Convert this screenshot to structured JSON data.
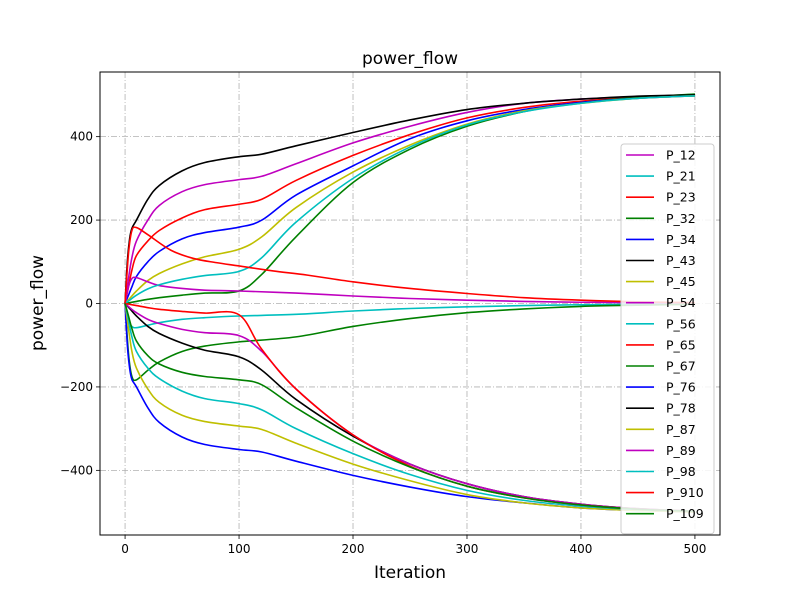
{
  "chart_data": {
    "type": "line",
    "title": "power_flow",
    "xlabel": "Iteration",
    "ylabel": "power_flow",
    "xlim": [
      -22,
      522
    ],
    "ylim": [
      -555,
      555
    ],
    "xticks": [
      0,
      100,
      200,
      300,
      400,
      500
    ],
    "yticks": [
      -400,
      -200,
      0,
      200,
      400
    ],
    "grid": true,
    "grid_style": "dashdot",
    "legend_position": "right",
    "series": [
      {
        "name": "P_12",
        "color": "#bf00bf",
        "x": [
          0,
          3,
          6,
          10,
          20,
          30,
          50,
          70,
          100,
          120,
          150,
          200,
          250,
          300,
          350,
          400,
          450,
          500
        ],
        "y": [
          0,
          60,
          110,
          150,
          200,
          235,
          268,
          285,
          297,
          305,
          335,
          385,
          425,
          458,
          480,
          490,
          496,
          500
        ]
      },
      {
        "name": "P_21",
        "color": "#00bfbf",
        "x": [
          0,
          3,
          6,
          10,
          20,
          30,
          50,
          70,
          100,
          150,
          200,
          250,
          300,
          350,
          400,
          450,
          500
        ],
        "y": [
          0,
          -40,
          -55,
          -58,
          -52,
          -46,
          -38,
          -34,
          -30,
          -26,
          -18,
          -12,
          -8,
          -5,
          -3,
          -2,
          -1
        ]
      },
      {
        "name": "P_23",
        "color": "#ff0000",
        "x": [
          0,
          3,
          6,
          10,
          20,
          30,
          50,
          70,
          100,
          120,
          150,
          200,
          250,
          300,
          350,
          400,
          450,
          500
        ],
        "y": [
          0,
          40,
          80,
          115,
          150,
          175,
          205,
          225,
          238,
          250,
          295,
          355,
          405,
          445,
          470,
          485,
          494,
          498
        ]
      },
      {
        "name": "P_32",
        "color": "#008000",
        "x": [
          0,
          10,
          20,
          30,
          50,
          70,
          100,
          120,
          150,
          200,
          250,
          300,
          350,
          400,
          450,
          500
        ],
        "y": [
          0,
          5,
          10,
          14,
          20,
          25,
          30,
          70,
          160,
          290,
          370,
          425,
          460,
          482,
          494,
          502
        ]
      },
      {
        "name": "P_34",
        "color": "#0000ff",
        "x": [
          0,
          3,
          6,
          10,
          20,
          30,
          50,
          70,
          100,
          120,
          150,
          200,
          250,
          300,
          350,
          400,
          450,
          500
        ],
        "y": [
          0,
          20,
          40,
          65,
          100,
          125,
          155,
          170,
          183,
          200,
          260,
          330,
          395,
          438,
          465,
          482,
          492,
          498
        ]
      },
      {
        "name": "P_43",
        "color": "#000000",
        "x": [
          0,
          2,
          4,
          6,
          10,
          20,
          30,
          50,
          70,
          100,
          120,
          150,
          200,
          250,
          300,
          350,
          400,
          450,
          500
        ],
        "y": [
          0,
          100,
          155,
          180,
          200,
          250,
          283,
          318,
          338,
          352,
          358,
          378,
          410,
          440,
          465,
          480,
          490,
          497,
          500
        ]
      },
      {
        "name": "P_45",
        "color": "#bfbf00",
        "x": [
          0,
          5,
          10,
          20,
          30,
          50,
          70,
          100,
          120,
          150,
          200,
          250,
          300,
          350,
          400,
          450,
          500
        ],
        "y": [
          0,
          15,
          30,
          55,
          72,
          95,
          112,
          130,
          160,
          230,
          315,
          380,
          430,
          462,
          480,
          492,
          498
        ]
      },
      {
        "name": "P_54",
        "color": "#bf00bf",
        "x": [
          0,
          3,
          6,
          10,
          20,
          30,
          50,
          70,
          100,
          150,
          200,
          250,
          300,
          350,
          400,
          450,
          500
        ],
        "y": [
          0,
          40,
          60,
          62,
          52,
          43,
          36,
          32,
          30,
          25,
          18,
          12,
          8,
          5,
          3,
          2,
          1
        ]
      },
      {
        "name": "P_56",
        "color": "#00bfbf",
        "x": [
          0,
          5,
          10,
          20,
          30,
          50,
          70,
          100,
          120,
          150,
          200,
          250,
          300,
          350,
          400,
          450,
          500
        ],
        "y": [
          0,
          10,
          20,
          35,
          45,
          58,
          67,
          77,
          110,
          195,
          300,
          375,
          428,
          460,
          480,
          492,
          498
        ]
      },
      {
        "name": "P_65",
        "color": "#ff0000",
        "x": [
          0,
          3,
          6,
          10,
          20,
          40,
          60,
          80,
          100,
          130,
          160,
          200,
          250,
          300,
          350,
          400,
          450,
          500
        ],
        "y": [
          0,
          120,
          175,
          182,
          165,
          128,
          108,
          98,
          90,
          78,
          68,
          52,
          36,
          24,
          14,
          8,
          4,
          2
        ]
      },
      {
        "name": "P_67",
        "color": "#008000",
        "x": [
          0,
          3,
          6,
          10,
          20,
          30,
          50,
          70,
          100,
          150,
          200,
          250,
          300,
          350,
          400,
          450,
          500
        ],
        "y": [
          0,
          -120,
          -175,
          -183,
          -160,
          -140,
          -115,
          -102,
          -92,
          -80,
          -55,
          -36,
          -22,
          -13,
          -7,
          -4,
          -2
        ]
      },
      {
        "name": "P_76",
        "color": "#0000ff",
        "x": [
          0,
          2,
          4,
          6,
          10,
          20,
          30,
          50,
          70,
          100,
          120,
          150,
          200,
          250,
          300,
          350,
          400,
          450,
          500
        ],
        "y": [
          0,
          -100,
          -155,
          -182,
          -200,
          -250,
          -285,
          -320,
          -338,
          -350,
          -356,
          -378,
          -412,
          -440,
          -463,
          -478,
          -490,
          -496,
          -500
        ]
      },
      {
        "name": "P_78",
        "color": "#000000",
        "x": [
          0,
          5,
          10,
          20,
          30,
          50,
          70,
          100,
          120,
          150,
          200,
          250,
          300,
          350,
          400,
          450,
          500
        ],
        "y": [
          0,
          -15,
          -30,
          -55,
          -72,
          -95,
          -112,
          -128,
          -160,
          -230,
          -318,
          -385,
          -432,
          -463,
          -481,
          -492,
          -498
        ]
      },
      {
        "name": "P_87",
        "color": "#bfbf00",
        "x": [
          0,
          3,
          6,
          10,
          20,
          30,
          50,
          70,
          100,
          120,
          150,
          200,
          250,
          300,
          350,
          400,
          450,
          500
        ],
        "y": [
          0,
          -60,
          -115,
          -155,
          -205,
          -237,
          -268,
          -283,
          -294,
          -302,
          -335,
          -385,
          -425,
          -458,
          -478,
          -490,
          -496,
          -500
        ]
      },
      {
        "name": "P_89",
        "color": "#bf00bf",
        "x": [
          0,
          5,
          10,
          20,
          30,
          50,
          70,
          100,
          120,
          150,
          200,
          250,
          300,
          350,
          400,
          450,
          500
        ],
        "y": [
          0,
          -12,
          -22,
          -38,
          -48,
          -62,
          -70,
          -77,
          -115,
          -205,
          -315,
          -385,
          -432,
          -463,
          -481,
          -492,
          -498
        ]
      },
      {
        "name": "P_98",
        "color": "#00bfbf",
        "x": [
          0,
          3,
          6,
          10,
          20,
          30,
          50,
          70,
          100,
          120,
          150,
          200,
          250,
          300,
          350,
          400,
          450,
          500
        ],
        "y": [
          0,
          -40,
          -80,
          -115,
          -155,
          -180,
          -210,
          -228,
          -240,
          -255,
          -300,
          -360,
          -410,
          -448,
          -472,
          -486,
          -494,
          -498
        ]
      },
      {
        "name": "P_910",
        "color": "#ff0000",
        "x": [
          0,
          10,
          20,
          30,
          50,
          70,
          100,
          120,
          150,
          200,
          250,
          300,
          350,
          400,
          450,
          500
        ],
        "y": [
          0,
          -5,
          -10,
          -14,
          -19,
          -23,
          -27,
          -110,
          -205,
          -315,
          -390,
          -438,
          -466,
          -483,
          -493,
          -498
        ]
      },
      {
        "name": "P_109",
        "color": "#008000",
        "x": [
          0,
          3,
          6,
          10,
          20,
          30,
          50,
          70,
          100,
          120,
          150,
          200,
          250,
          300,
          350,
          400,
          450,
          500
        ],
        "y": [
          0,
          -30,
          -60,
          -90,
          -125,
          -145,
          -165,
          -175,
          -183,
          -195,
          -250,
          -330,
          -392,
          -438,
          -466,
          -483,
          -493,
          -498
        ]
      }
    ]
  }
}
